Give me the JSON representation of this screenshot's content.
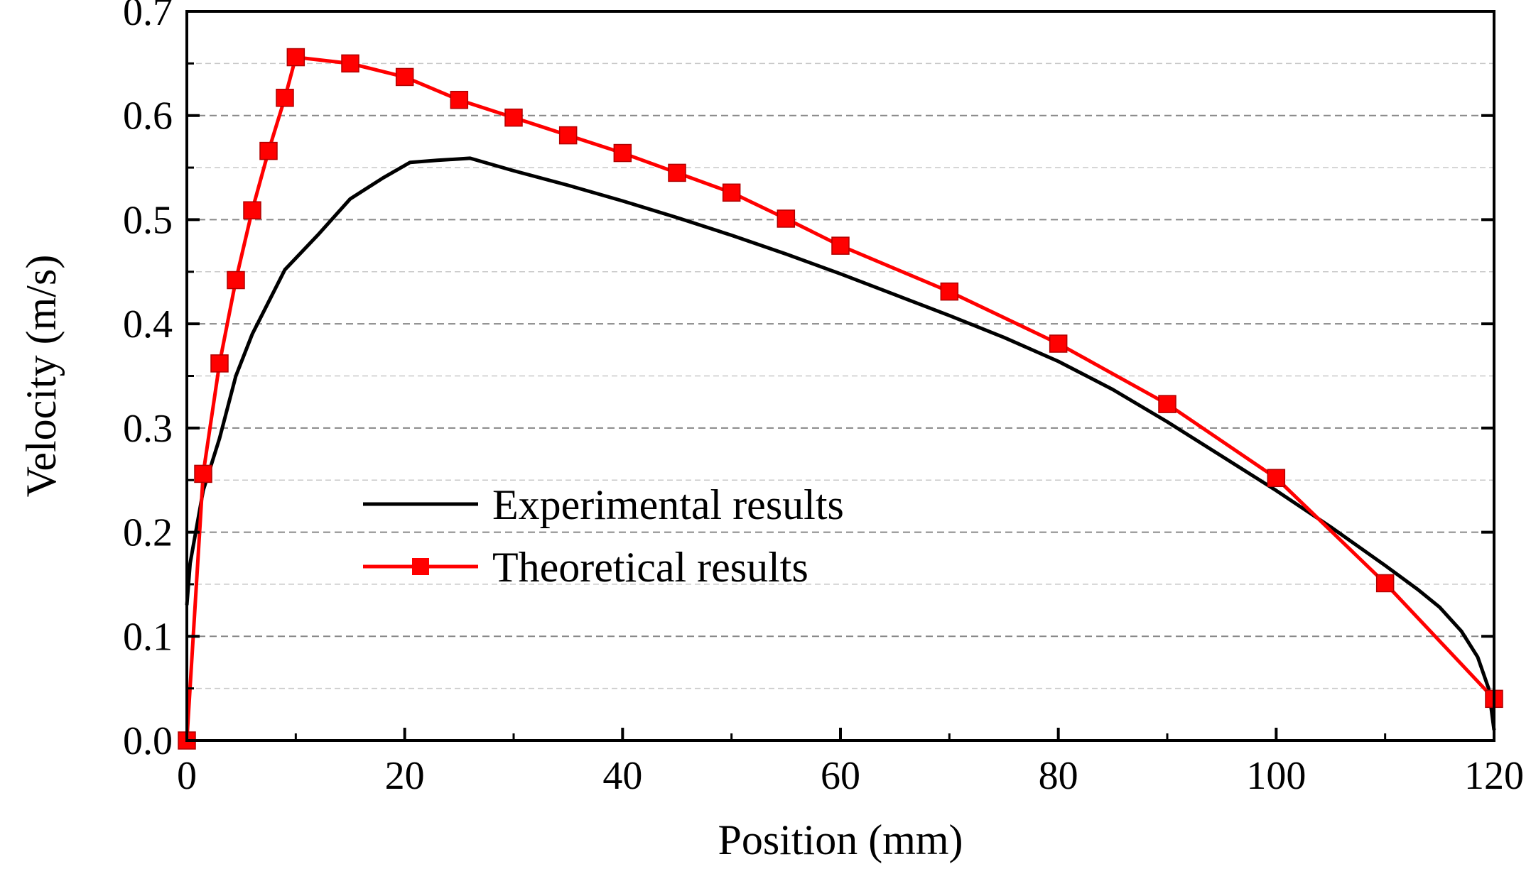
{
  "chart_data": {
    "type": "line",
    "title": "",
    "xlabel": "Position (mm)",
    "ylabel": "Velocity (m/s)",
    "xlim": [
      0,
      120
    ],
    "ylim": [
      0.0,
      0.7
    ],
    "xticks": [
      0,
      20,
      40,
      60,
      80,
      100,
      120
    ],
    "yticks": [
      0.0,
      0.1,
      0.2,
      0.3,
      0.4,
      0.5,
      0.6,
      0.7
    ],
    "xtick_labels": [
      "0",
      "20",
      "40",
      "60",
      "80",
      "100",
      "120"
    ],
    "ytick_labels": [
      "0.0",
      "0.1",
      "0.2",
      "0.3",
      "0.4",
      "0.5",
      "0.6",
      "0.7"
    ],
    "grid": "horizontal dashed at major and minor ticks",
    "legend_position": "center-left",
    "series": [
      {
        "name": "Experimental results",
        "color": "#000000",
        "marker": "none",
        "x": [
          0,
          0.3,
          1.5,
          3,
          4.5,
          6,
          9,
          12,
          15,
          18,
          20.5,
          23,
          26,
          30,
          35,
          40,
          45,
          50,
          55,
          60,
          65,
          70,
          75,
          80,
          85,
          90,
          95,
          100,
          105,
          110,
          113,
          115,
          117,
          118.5,
          119.5,
          120
        ],
        "y": [
          0.13,
          0.17,
          0.24,
          0.29,
          0.35,
          0.39,
          0.452,
          0.485,
          0.52,
          0.54,
          0.555,
          0.557,
          0.559,
          0.547,
          0.533,
          0.518,
          0.502,
          0.485,
          0.467,
          0.448,
          0.428,
          0.408,
          0.387,
          0.364,
          0.337,
          0.306,
          0.273,
          0.24,
          0.205,
          0.168,
          0.145,
          0.128,
          0.105,
          0.08,
          0.05,
          0.01
        ]
      },
      {
        "name": "Theoretical results",
        "color": "#ff0000",
        "marker": "square",
        "x": [
          0,
          1.5,
          3,
          4.5,
          6,
          7.5,
          9,
          10,
          15,
          20,
          25,
          30,
          35,
          40,
          45,
          50,
          55,
          60,
          70,
          80,
          90,
          100,
          110,
          120
        ],
        "y": [
          0.0,
          0.256,
          0.362,
          0.442,
          0.509,
          0.566,
          0.617,
          0.656,
          0.65,
          0.637,
          0.615,
          0.598,
          0.581,
          0.564,
          0.545,
          0.526,
          0.501,
          0.475,
          0.431,
          0.381,
          0.323,
          0.252,
          0.151,
          0.04
        ]
      }
    ]
  }
}
